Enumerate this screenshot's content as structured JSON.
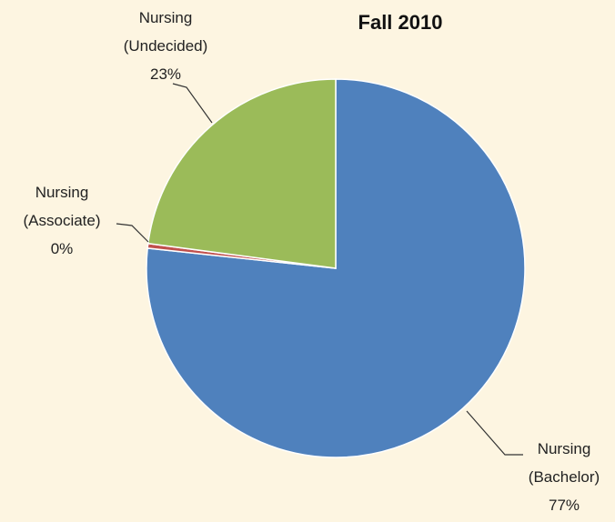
{
  "chart_data": {
    "type": "pie",
    "title": "Fall 2010",
    "categories": [
      "Nursing (Bachelor)",
      "Nursing (Associate)",
      "Nursing (Undecided)"
    ],
    "values": [
      77,
      0.4,
      23
    ],
    "value_labels": [
      "77%",
      "0%",
      "23%"
    ],
    "colors": [
      "#4f81bd",
      "#c0504d",
      "#9bbb59"
    ]
  }
}
